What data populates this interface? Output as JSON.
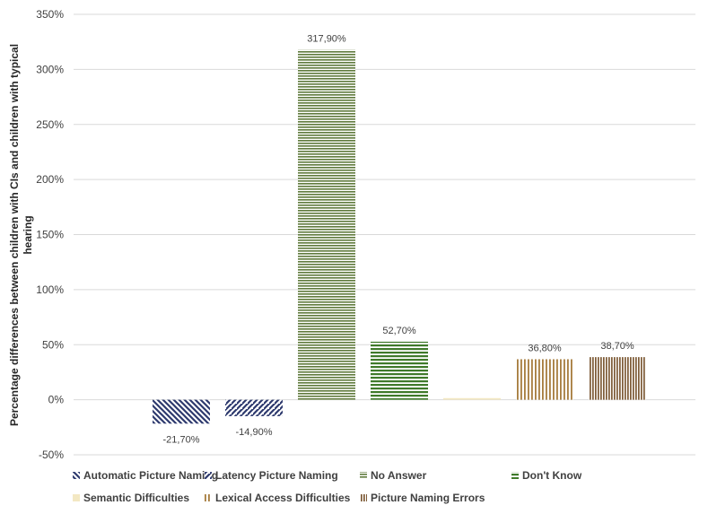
{
  "chart_data": {
    "type": "bar",
    "ylabel_lines": [
      "Percentage differences between children with CIs and children with typical",
      "hearing"
    ],
    "ylim": [
      -50,
      350
    ],
    "yticks": [
      -50,
      0,
      50,
      100,
      150,
      200,
      250,
      300,
      350
    ],
    "ytick_labels": [
      "-50%",
      "0%",
      "50%",
      "100%",
      "150%",
      "200%",
      "250%",
      "300%",
      "350%"
    ],
    "grid": true,
    "legend_position": "bottom",
    "series": [
      {
        "name": "Automatic Picture Naming",
        "value": -21.7,
        "label": "-21,70%",
        "color": "#2e3a6e",
        "pattern": "diag-left"
      },
      {
        "name": "Latency Picture Naming",
        "value": -14.9,
        "label": "-14,90%",
        "color": "#2e3a6e",
        "pattern": "diag-right"
      },
      {
        "name": "No Answer",
        "value": 317.9,
        "label": "317,90%",
        "color": "#5f7a3c",
        "pattern": "hlines-fine"
      },
      {
        "name": "Don't Know",
        "value": 52.7,
        "label": "52,70%",
        "color": "#3f7a2a",
        "pattern": "hlines"
      },
      {
        "name": "Semantic Difficulties",
        "value": 1.5,
        "label": "",
        "color": "#f3e8c3",
        "pattern": "solid"
      },
      {
        "name": "Lexical Access Difficulties",
        "value": 36.8,
        "label": "36,80%",
        "color": "#a67c3d",
        "pattern": "vlines"
      },
      {
        "name": "Picture Naming Errors",
        "value": 38.7,
        "label": "38,70%",
        "color": "#7d5a36",
        "pattern": "vlines-fine"
      }
    ]
  }
}
